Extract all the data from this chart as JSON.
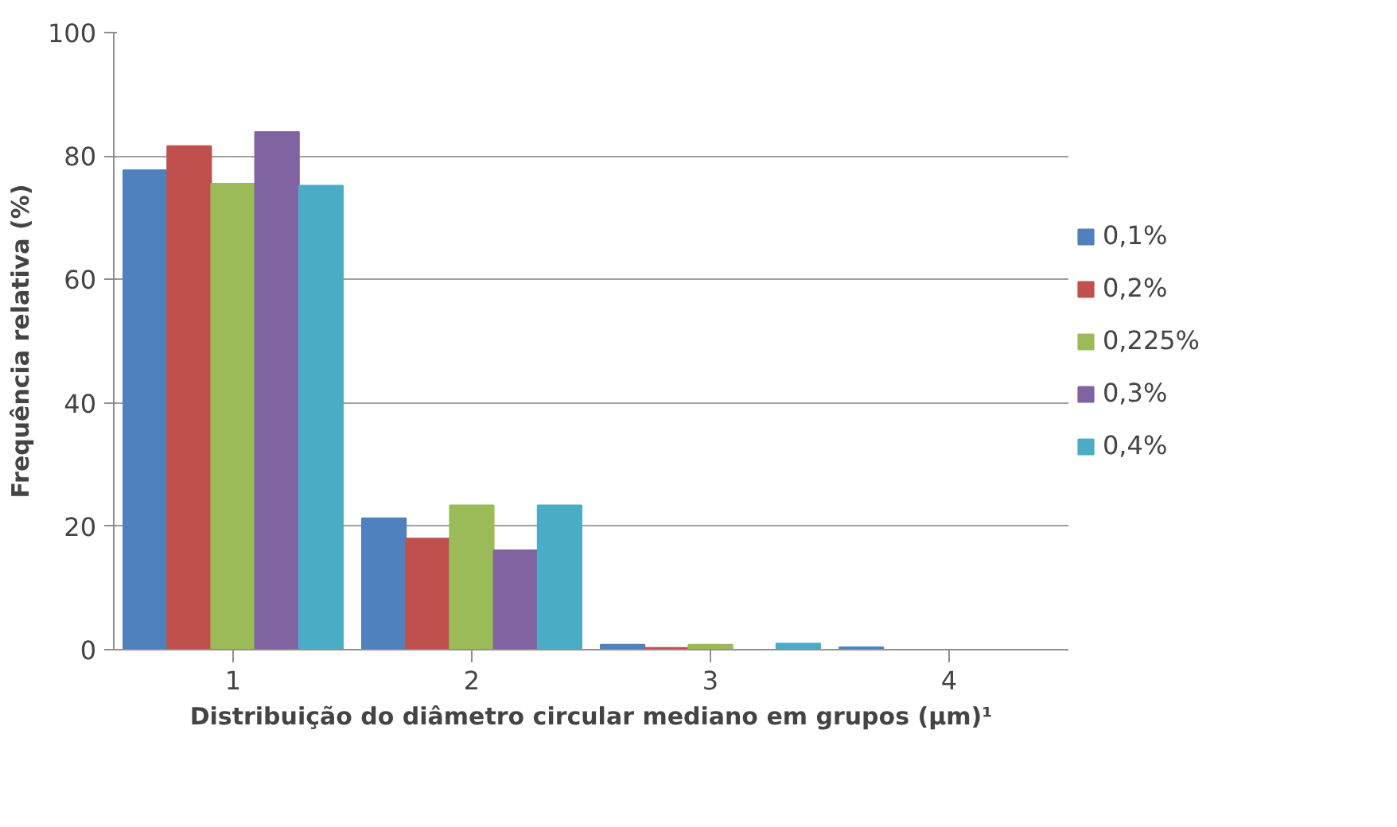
{
  "chart_data": {
    "type": "bar",
    "xlabel": "Distribuição do diâmetro circular mediano em grupos (µm)¹",
    "ylabel": "Frequência relativa (%)",
    "categories": [
      "1",
      "2",
      "3",
      "4"
    ],
    "series": [
      {
        "name": "0,1%",
        "color": "#4f81bd",
        "values": [
          77.7,
          21.3,
          0.8,
          0.4
        ]
      },
      {
        "name": "0,2%",
        "color": "#c0504d",
        "values": [
          81.6,
          18.0,
          0.3,
          0
        ]
      },
      {
        "name": "0,225%",
        "color": "#9bbb59",
        "values": [
          75.5,
          23.4,
          0.8,
          0
        ]
      },
      {
        "name": "0,3%",
        "color": "#8064a2",
        "values": [
          83.9,
          16.1,
          0,
          0
        ]
      },
      {
        "name": "0,4%",
        "color": "#4bacc6",
        "values": [
          75.2,
          23.4,
          1.0,
          0
        ]
      }
    ],
    "ylim": [
      0,
      100
    ],
    "yticks": [
      0,
      20,
      40,
      60,
      80,
      100
    ],
    "grid": "y",
    "legend": "right"
  }
}
